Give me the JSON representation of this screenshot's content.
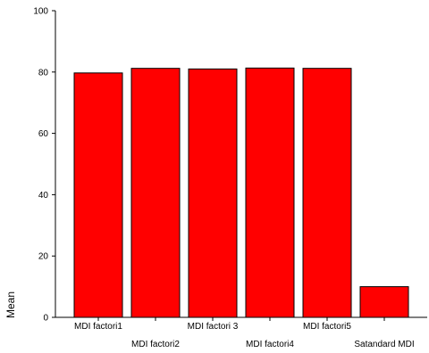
{
  "chart_data": {
    "type": "bar",
    "title": "",
    "xlabel": "",
    "ylabel": "Mean",
    "ylim": [
      0,
      100
    ],
    "yticks": [
      0,
      20,
      40,
      60,
      80,
      100
    ],
    "grid": false,
    "categories": [
      "MDI factori1",
      "MDI factori2",
      "MDI factori 3",
      "MDI factori4",
      "MDI factori5",
      "Satandard MDI"
    ],
    "values": [
      79.7,
      81.2,
      81.0,
      81.3,
      81.2,
      10.0
    ],
    "bar_color": "#ff0000",
    "bar_edge_color": "#000000"
  }
}
